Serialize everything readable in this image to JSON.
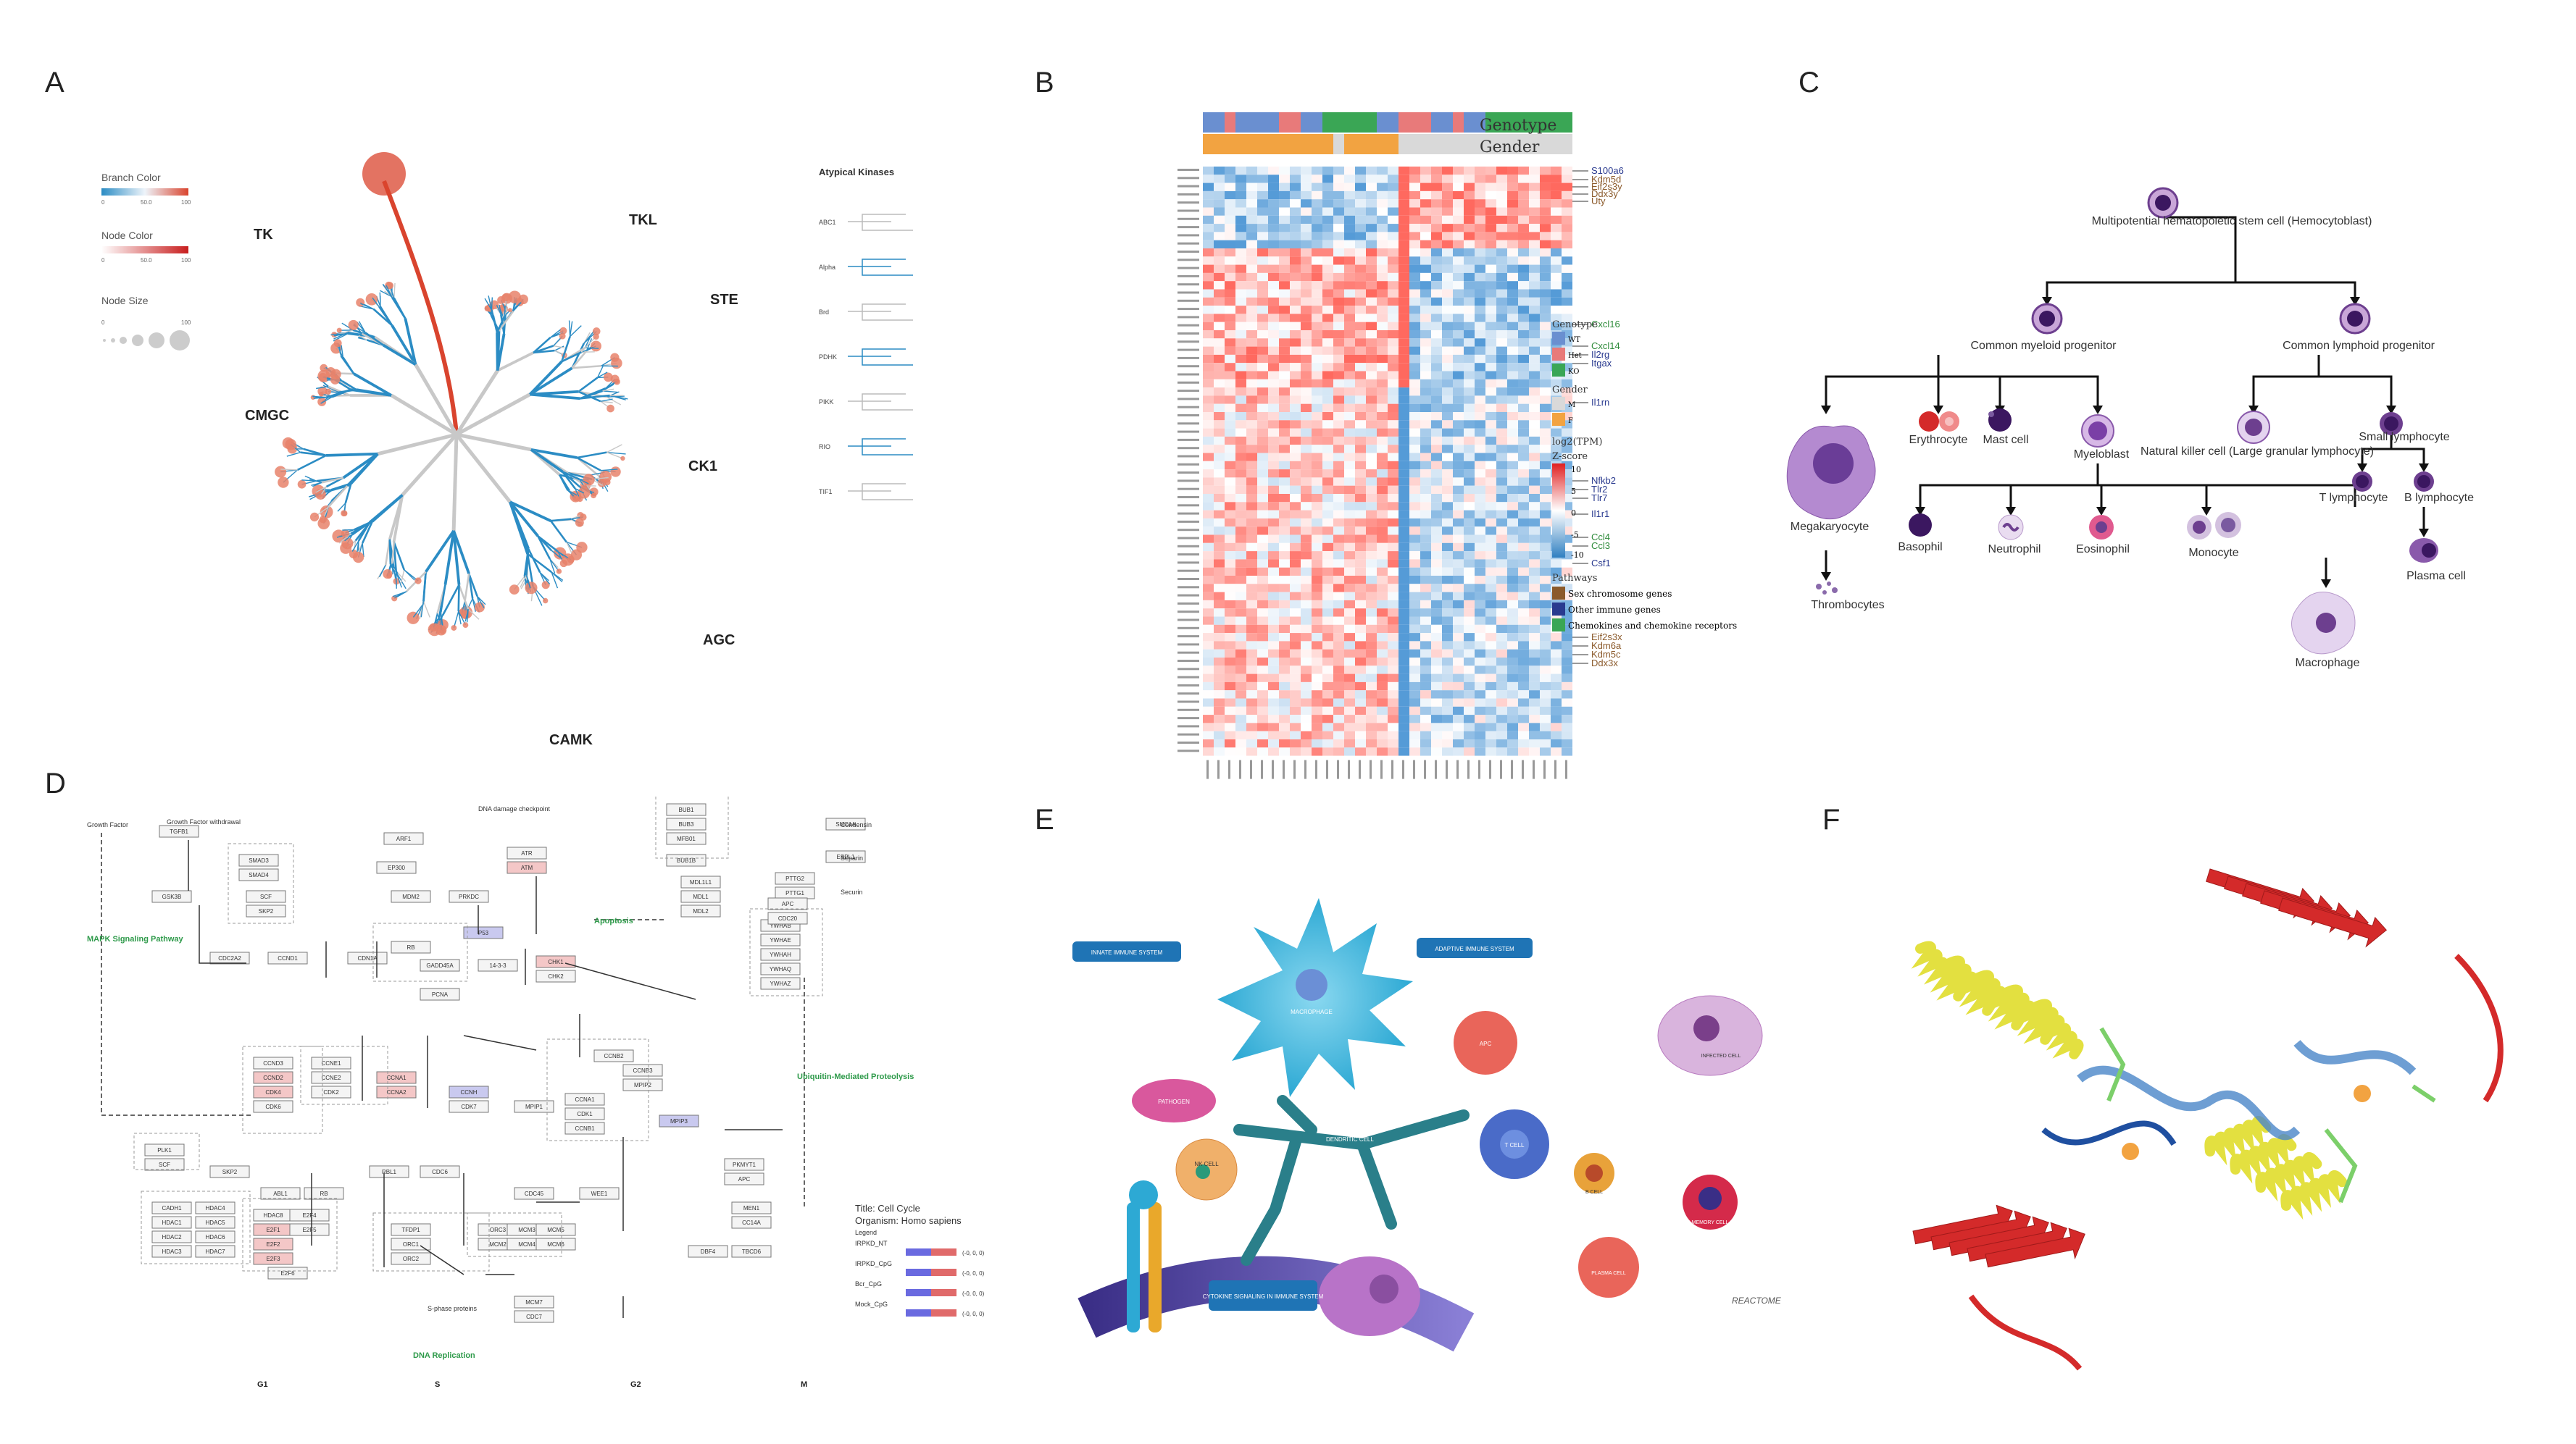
{
  "panel_labels": [
    "A",
    "B",
    "C",
    "D",
    "E",
    "F"
  ],
  "panelA": {
    "groups": [
      "TK",
      "TKL",
      "STE",
      "CMGC",
      "CK1",
      "AGC",
      "CAMK"
    ],
    "legend": {
      "branch_color": "Branch Color",
      "node_color": "Node Color",
      "node_size": "Node Size",
      "ticks": [
        "0",
        "50.0",
        "100"
      ]
    },
    "atypical_title": "Atypical Kinases",
    "atypical_families": [
      "ABC1",
      "Alpha",
      "Brd",
      "PDHK",
      "PIKK",
      "RIO",
      "TIF1"
    ],
    "colors": {
      "branch_blue": "#2b8cc4",
      "branch_red": "#d9442e",
      "branch_grey": "#c8c8c8",
      "node": "#e8836b"
    }
  },
  "panelB": {
    "top_labels": [
      "Genotype",
      "Gender"
    ],
    "right_genes": [
      "S100a6",
      "Kdm5d",
      "Eif2s3y",
      "Ddx3y",
      "Uty",
      "Cxcl16",
      "Cxcl14",
      "Il2rg",
      "Itgax",
      "Il1rn",
      "Nfkb2",
      "Tlr2",
      "Tlr7",
      "Il1r1",
      "Ccl4",
      "Ccl3",
      "Csf1",
      "Eif2s3x",
      "Kdm6a",
      "Kdm5c",
      "Ddx3x"
    ],
    "gene_colors": [
      "#2a3a8f",
      "#8b5a2b",
      "#8b5a2b",
      "#8b5a2b",
      "#8b5a2b",
      "#2e8b3a",
      "#2e8b3a",
      "#2a3a8f",
      "#2a3a8f",
      "#2a3a8f",
      "#2a3a8f",
      "#2a3a8f",
      "#2a3a8f",
      "#2a3a8f",
      "#2e8b3a",
      "#2e8b3a",
      "#2a3a8f",
      "#8b5a2b",
      "#8b5a2b",
      "#8b5a2b",
      "#8b5a2b"
    ],
    "legend": {
      "genotype_title": "Genotype",
      "genotype": [
        {
          "label": "WT",
          "color": "#6a8fd0"
        },
        {
          "label": "Het",
          "color": "#e87a7a"
        },
        {
          "label": "KO",
          "color": "#3aa655"
        }
      ],
      "gender_title": "Gender",
      "gender": [
        {
          "label": "M",
          "color": "#d9d9d9"
        },
        {
          "label": "F",
          "color": "#f2a341"
        }
      ],
      "scale_title1": "log2(TPM)",
      "scale_title2": "Z-score",
      "scale_ticks": [
        "10",
        "5",
        "0",
        "-5",
        "-10"
      ],
      "pathways_title": "Pathways",
      "pathways": [
        {
          "label": "Sex chromosome genes",
          "color": "#8b5a2b"
        },
        {
          "label": "Other immune genes",
          "color": "#2a3a8f"
        },
        {
          "label": "Chemokines and chemokine receptors",
          "color": "#3aa655"
        }
      ]
    }
  },
  "panelC": {
    "nodes": {
      "stem": "Multipotential hematopoietic stem cell (Hemocytoblast)",
      "myeloid": "Common myeloid progenitor",
      "lymphoid": "Common lymphoid progenitor",
      "megakaryocyte": "Megakaryocyte",
      "thrombocytes": "Thrombocytes",
      "erythrocyte": "Erythrocyte",
      "mast": "Mast cell",
      "myeloblast": "Myeloblast",
      "nk": "Natural killer cell (Large granular lymphocyte)",
      "small_lymph": "Small lymphocyte",
      "t_lymph": "T lymphocyte",
      "b_lymph": "B lymphocyte",
      "plasma": "Plasma cell",
      "basophil": "Basophil",
      "neutrophil": "Neutrophil",
      "eosinophil": "Eosinophil",
      "monocyte": "Monocyte",
      "macrophage": "Macrophage"
    }
  },
  "panelD": {
    "phases": [
      "G1",
      "S",
      "G2",
      "M"
    ],
    "side_labels": [
      "Growth Factor",
      "Growth Factor withdrawal",
      "MAPK Signaling Pathway",
      "DNA damage checkpoint",
      "Apoptosis",
      "Ubiquitin-Mediated Proteolysis",
      "DNA Replication",
      "Condensin",
      "Separin",
      "Securin",
      "S-phase proteins"
    ],
    "title_line1": "Title: Cell Cycle",
    "title_line2": "Organism: Homo sapiens",
    "legend_title": "Legend",
    "legend_items": [
      "IRPKD_NT",
      "IRPKD_CpG",
      "Bcr_CpG",
      "Mock_CpG"
    ],
    "legend_scale": "(-0, 0, 0)",
    "genes": [
      "GSK3B",
      "TGFB1",
      "SMAD3",
      "SMAD4",
      "SCF",
      "SKP2",
      "CDC2A2",
      "CCND1",
      "CDN1A",
      "ARF1",
      "EP300",
      "MDM2",
      "PRKDC",
      "ATR",
      "ATM",
      "P53",
      "RB",
      "GADD45A",
      "PCNA",
      "CHK1",
      "CHK2",
      "14-3-3",
      "BUB1",
      "BUB3",
      "MFB01",
      "BUB1B",
      "MDL1L1",
      "MDL1",
      "MDL2",
      "SMC1A",
      "ESPL1",
      "PTTG2",
      "PTTG1",
      "YWHAB",
      "YWHAE",
      "YWHAH",
      "YWHAQ",
      "YWHAZ",
      "APC",
      "CDC20",
      "CCND3",
      "CCND2",
      "CDK4",
      "CDK6",
      "CCNE1",
      "CCNE2",
      "CDK2",
      "CCNA1",
      "CCNA2",
      "CCNH",
      "CDK7",
      "MPIP1",
      "CCNA1",
      "CDK1",
      "CCNB1",
      "CCNB2",
      "CCNB3",
      "MPIP2",
      "MPIP3",
      "PLK1",
      "SCF",
      "SKP2",
      "ABL1",
      "RB",
      "RBL1",
      "CDC6",
      "CDC45",
      "WEE1",
      "PKMYT1",
      "APC",
      "CADH1",
      "HDAC1",
      "HDAC2",
      "HDAC3",
      "HDAC4",
      "HDAC5",
      "HDAC6",
      "HDAC7",
      "HDAC8",
      "E2F1",
      "E2F2",
      "E2F3",
      "E2F4",
      "E2F5",
      "E2F6",
      "TFDP1",
      "ORC1",
      "ORC2",
      "ORC3",
      "MCM2",
      "MCM3",
      "MCM4",
      "MCM5",
      "MCM6",
      "MCM7",
      "CDC7",
      "DBF4",
      "TBCD6",
      "MEN1",
      "CC14A",
      "CC14B"
    ]
  },
  "panelE": {
    "badges": [
      "INNATE IMMUNE SYSTEM",
      "ADAPTIVE IMMUNE SYSTEM",
      "CYTOKINE SIGNALING IN IMMUNE SYSTEM"
    ],
    "cells": [
      "MACROPHAGE",
      "PATHOGEN",
      "NK CELL",
      "DENDRITIC CELL",
      "APC",
      "T CELL",
      "B CELL",
      "INFECTED CELL",
      "MEMORY CELL",
      "PLASMA CELL"
    ],
    "logo": "REACTOME"
  },
  "panelF": {
    "colors": {
      "helix": "#e3e040",
      "sheet": "#d42a2a",
      "loop_blue": "#4a86c8",
      "ligand": "#7ccf6a"
    }
  }
}
